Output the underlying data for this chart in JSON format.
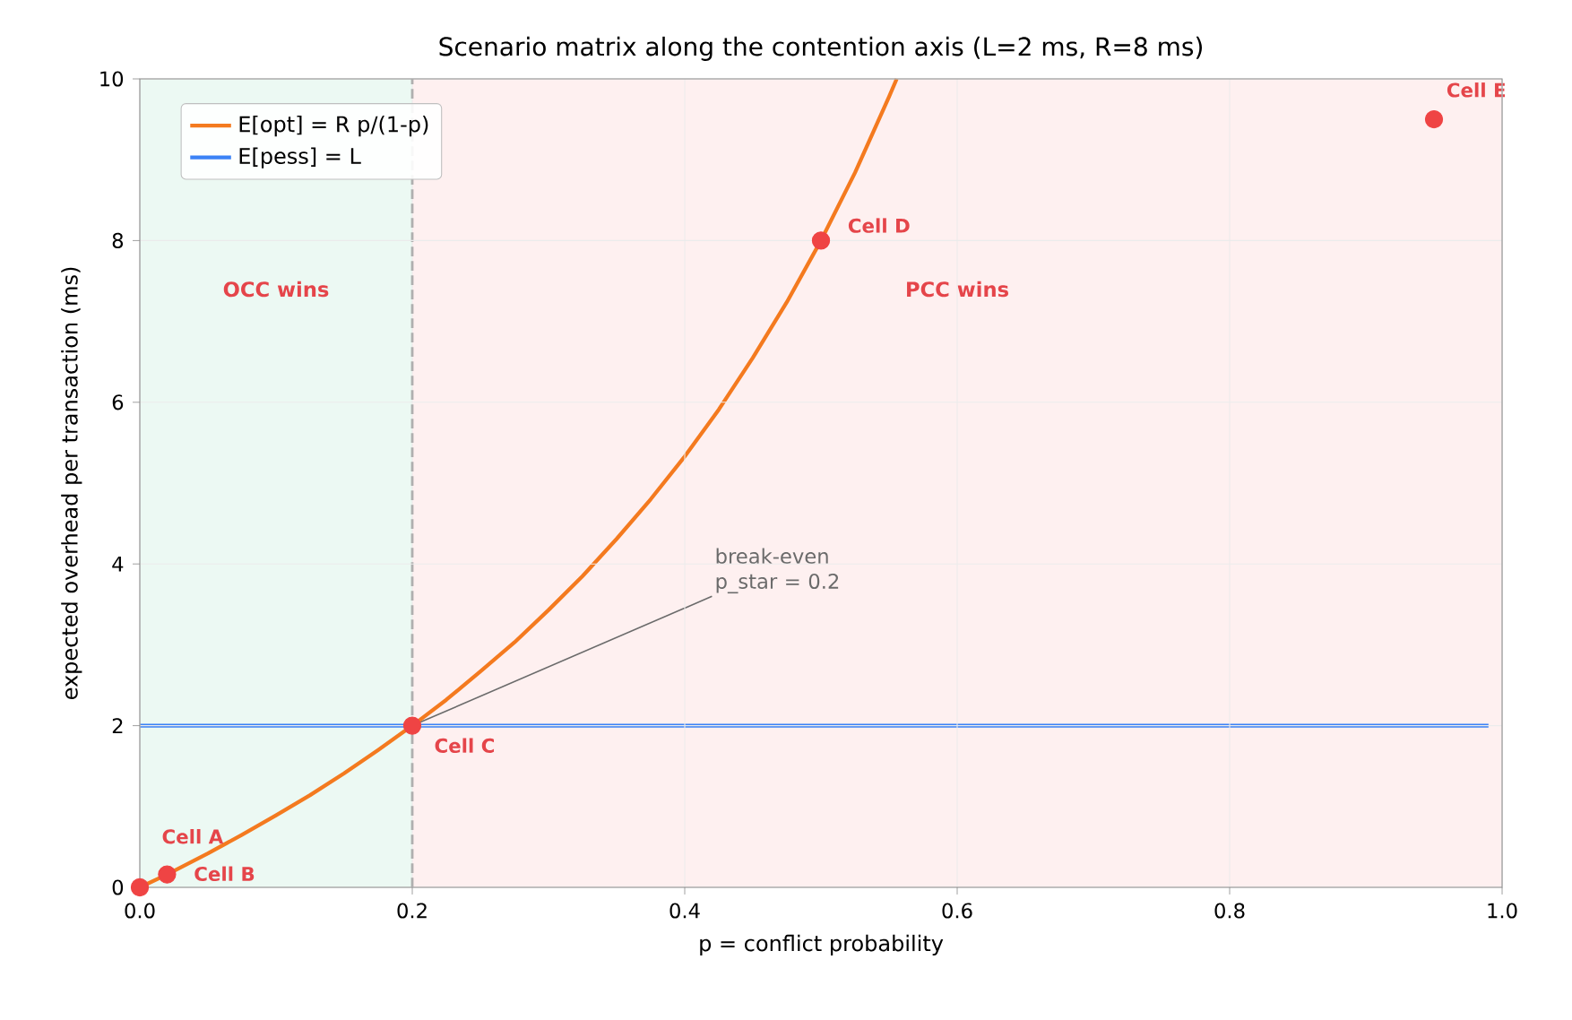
{
  "chart_data": {
    "type": "line",
    "title": "Scenario matrix along the contention axis (L=2 ms, R=8 ms)",
    "xlabel": "p  =  conflict probability",
    "ylabel": "expected overhead per transaction (ms)",
    "xlim": [
      0,
      1
    ],
    "ylim": [
      0,
      10
    ],
    "xticks": [
      {
        "value": 0,
        "label": "0.0"
      },
      0.2,
      0.4,
      0.6,
      0.8,
      {
        "value": 1,
        "label": "1.0"
      }
    ],
    "yticks": [
      0,
      2,
      4,
      6,
      8,
      10
    ],
    "grid": true,
    "legend": "top left",
    "series": [
      {
        "name": "E[opt] = R p/(1-p)",
        "color": "#f47a1f",
        "x": [
          0,
          0.02,
          0.05,
          0.075,
          0.1,
          0.125,
          0.15,
          0.175,
          0.2,
          0.225,
          0.25,
          0.275,
          0.3,
          0.325,
          0.35,
          0.375,
          0.4,
          0.425,
          0.45,
          0.475,
          0.5,
          0.525,
          0.55,
          0.5556
        ],
        "values": [
          0,
          0.16,
          0.42,
          0.65,
          0.89,
          1.14,
          1.41,
          1.7,
          2,
          2.32,
          2.67,
          3.03,
          3.43,
          3.85,
          4.31,
          4.8,
          5.33,
          5.91,
          6.55,
          7.24,
          8,
          8.84,
          9.78,
          10
        ]
      },
      {
        "name": "E[pess] = L",
        "color": "#3b82f6",
        "x": [
          0,
          0.99
        ],
        "values": [
          2,
          2
        ]
      },
      {
        "type": "scatter",
        "marker": "circle",
        "color": "#ef4444",
        "x": [
          0,
          0.02,
          0.2,
          0.5,
          0.95
        ],
        "values": [
          0,
          0.16,
          2,
          8,
          9.5
        ]
      }
    ],
    "bands": [
      {
        "axis": "x",
        "from": 0,
        "to": 0.2,
        "label": "OCC wins",
        "color": "#ecf9f3"
      },
      {
        "axis": "x",
        "from": 0.2,
        "to": 1,
        "label": "PCC wins",
        "color": "#fef0f0"
      }
    ],
    "ref_lines": [
      {
        "axis": "x",
        "value": 0.2,
        "label": "break-even p_star = 0.2",
        "color": "#6b6b6b",
        "line_style": "dashed"
      }
    ],
    "annotations": [
      {
        "text": "Cell A",
        "x": 0,
        "y": 0
      },
      {
        "text": "Cell B",
        "x": 0.02,
        "y": 0.16
      },
      {
        "text": "Cell C",
        "x": 0.2,
        "y": 2
      },
      {
        "text": "Cell D",
        "x": 0.5,
        "y": 8
      },
      {
        "text": "Cell E",
        "x": 0.95,
        "y": 9.5
      }
    ]
  }
}
